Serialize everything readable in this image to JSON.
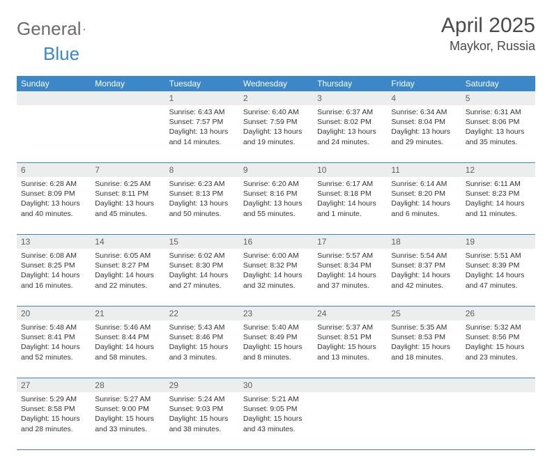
{
  "brand": {
    "word1": "General",
    "word2": "Blue"
  },
  "title": "April 2025",
  "location": "Maykor, Russia",
  "colors": {
    "header_bg": "#3b87c8",
    "header_text": "#ffffff",
    "daynum_bg": "#eceded",
    "rule": "#3b87c8"
  },
  "weekdays": [
    "Sunday",
    "Monday",
    "Tuesday",
    "Wednesday",
    "Thursday",
    "Friday",
    "Saturday"
  ],
  "weeks": [
    [
      null,
      null,
      {
        "n": "1",
        "sr": "6:43 AM",
        "ss": "7:57 PM",
        "dl": "13 hours and 14 minutes."
      },
      {
        "n": "2",
        "sr": "6:40 AM",
        "ss": "7:59 PM",
        "dl": "13 hours and 19 minutes."
      },
      {
        "n": "3",
        "sr": "6:37 AM",
        "ss": "8:02 PM",
        "dl": "13 hours and 24 minutes."
      },
      {
        "n": "4",
        "sr": "6:34 AM",
        "ss": "8:04 PM",
        "dl": "13 hours and 29 minutes."
      },
      {
        "n": "5",
        "sr": "6:31 AM",
        "ss": "8:06 PM",
        "dl": "13 hours and 35 minutes."
      }
    ],
    [
      {
        "n": "6",
        "sr": "6:28 AM",
        "ss": "8:09 PM",
        "dl": "13 hours and 40 minutes."
      },
      {
        "n": "7",
        "sr": "6:25 AM",
        "ss": "8:11 PM",
        "dl": "13 hours and 45 minutes."
      },
      {
        "n": "8",
        "sr": "6:23 AM",
        "ss": "8:13 PM",
        "dl": "13 hours and 50 minutes."
      },
      {
        "n": "9",
        "sr": "6:20 AM",
        "ss": "8:16 PM",
        "dl": "13 hours and 55 minutes."
      },
      {
        "n": "10",
        "sr": "6:17 AM",
        "ss": "8:18 PM",
        "dl": "14 hours and 1 minute."
      },
      {
        "n": "11",
        "sr": "6:14 AM",
        "ss": "8:20 PM",
        "dl": "14 hours and 6 minutes."
      },
      {
        "n": "12",
        "sr": "6:11 AM",
        "ss": "8:23 PM",
        "dl": "14 hours and 11 minutes."
      }
    ],
    [
      {
        "n": "13",
        "sr": "6:08 AM",
        "ss": "8:25 PM",
        "dl": "14 hours and 16 minutes."
      },
      {
        "n": "14",
        "sr": "6:05 AM",
        "ss": "8:27 PM",
        "dl": "14 hours and 22 minutes."
      },
      {
        "n": "15",
        "sr": "6:02 AM",
        "ss": "8:30 PM",
        "dl": "14 hours and 27 minutes."
      },
      {
        "n": "16",
        "sr": "6:00 AM",
        "ss": "8:32 PM",
        "dl": "14 hours and 32 minutes."
      },
      {
        "n": "17",
        "sr": "5:57 AM",
        "ss": "8:34 PM",
        "dl": "14 hours and 37 minutes."
      },
      {
        "n": "18",
        "sr": "5:54 AM",
        "ss": "8:37 PM",
        "dl": "14 hours and 42 minutes."
      },
      {
        "n": "19",
        "sr": "5:51 AM",
        "ss": "8:39 PM",
        "dl": "14 hours and 47 minutes."
      }
    ],
    [
      {
        "n": "20",
        "sr": "5:48 AM",
        "ss": "8:41 PM",
        "dl": "14 hours and 52 minutes."
      },
      {
        "n": "21",
        "sr": "5:46 AM",
        "ss": "8:44 PM",
        "dl": "14 hours and 58 minutes."
      },
      {
        "n": "22",
        "sr": "5:43 AM",
        "ss": "8:46 PM",
        "dl": "15 hours and 3 minutes."
      },
      {
        "n": "23",
        "sr": "5:40 AM",
        "ss": "8:49 PM",
        "dl": "15 hours and 8 minutes."
      },
      {
        "n": "24",
        "sr": "5:37 AM",
        "ss": "8:51 PM",
        "dl": "15 hours and 13 minutes."
      },
      {
        "n": "25",
        "sr": "5:35 AM",
        "ss": "8:53 PM",
        "dl": "15 hours and 18 minutes."
      },
      {
        "n": "26",
        "sr": "5:32 AM",
        "ss": "8:56 PM",
        "dl": "15 hours and 23 minutes."
      }
    ],
    [
      {
        "n": "27",
        "sr": "5:29 AM",
        "ss": "8:58 PM",
        "dl": "15 hours and 28 minutes."
      },
      {
        "n": "28",
        "sr": "5:27 AM",
        "ss": "9:00 PM",
        "dl": "15 hours and 33 minutes."
      },
      {
        "n": "29",
        "sr": "5:24 AM",
        "ss": "9:03 PM",
        "dl": "15 hours and 38 minutes."
      },
      {
        "n": "30",
        "sr": "5:21 AM",
        "ss": "9:05 PM",
        "dl": "15 hours and 43 minutes."
      },
      null,
      null,
      null
    ]
  ],
  "labels": {
    "sunrise": "Sunrise: ",
    "sunset": "Sunset: ",
    "daylight": "Daylight: "
  }
}
